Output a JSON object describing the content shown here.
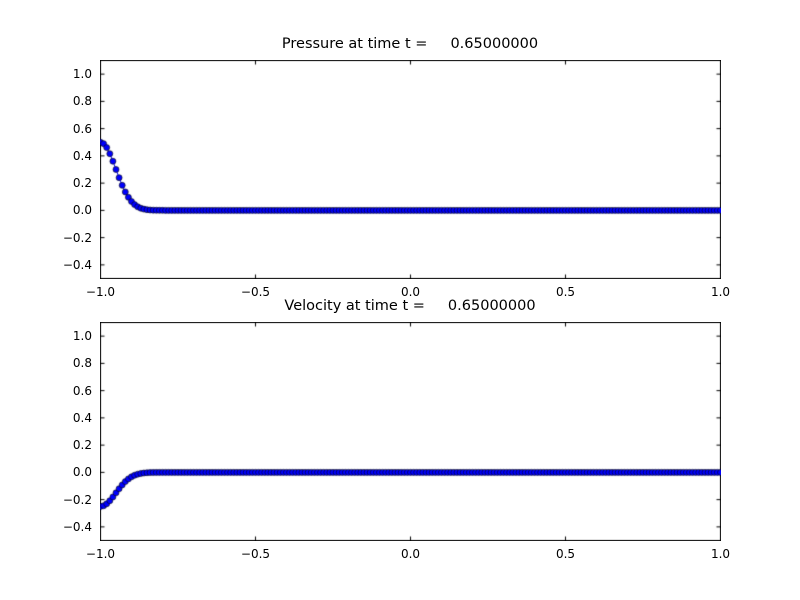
{
  "figure": {
    "background": "#ffffff"
  },
  "chart_data": [
    {
      "type": "line",
      "title": "Pressure at time t =     0.65000000",
      "xlabel": "",
      "ylabel": "",
      "xlim": [
        -1.0,
        1.0
      ],
      "ylim": [
        -0.5,
        1.1
      ],
      "xticks": [
        -1.0,
        -0.5,
        0.0,
        0.5,
        1.0
      ],
      "xtick_labels": [
        "−1.0",
        "−0.5",
        "0.0",
        "0.5",
        "1.0"
      ],
      "yticks": [
        1.0,
        0.8,
        0.6,
        0.4,
        0.2,
        0.0,
        -0.2,
        -0.4
      ],
      "ytick_labels": [
        "1.0",
        "0.8",
        "0.6",
        "0.4",
        "0.2",
        "0.0",
        "−0.2",
        "−0.4"
      ],
      "grid": false,
      "legend": null,
      "style": {
        "line_color": "#0000ff",
        "line_width": 1,
        "marker": "o",
        "marker_face": "#0000ff",
        "marker_edge": "#000000",
        "marker_size_px": 6
      },
      "series": [
        {
          "name": "pressure",
          "x_min": -1.0,
          "x_max": 1.0,
          "n_points": 201,
          "y_leading": [
            0.5,
            0.4899,
            0.4608,
            0.4161,
            0.3607,
            0.3002,
            0.2399,
            0.1839,
            0.1354,
            0.0957,
            0.065,
            0.0423,
            0.0265,
            0.0159,
            0.0092,
            0.0051,
            0.0027,
            0.0014,
            0.0007,
            0.0003,
            0.0001
          ],
          "y_remaining_value": 0.0
        }
      ]
    },
    {
      "type": "line",
      "title": "Velocity at time t =     0.65000000",
      "xlabel": "",
      "ylabel": "",
      "xlim": [
        -1.0,
        1.0
      ],
      "ylim": [
        -0.5,
        1.1
      ],
      "xticks": [
        -1.0,
        -0.5,
        0.0,
        0.5,
        1.0
      ],
      "xtick_labels": [
        "−1.0",
        "−0.5",
        "0.0",
        "0.5",
        "1.0"
      ],
      "yticks": [
        1.0,
        0.8,
        0.6,
        0.4,
        0.2,
        0.0,
        -0.2,
        -0.4
      ],
      "ytick_labels": [
        "1.0",
        "0.8",
        "0.6",
        "0.4",
        "0.2",
        "0.0",
        "−0.2",
        "−0.4"
      ],
      "grid": false,
      "legend": null,
      "style": {
        "line_color": "#0000ff",
        "line_width": 1,
        "marker": "o",
        "marker_face": "#0000ff",
        "marker_edge": "#000000",
        "marker_size_px": 6
      },
      "series": [
        {
          "name": "velocity",
          "x_min": -1.0,
          "x_max": 1.0,
          "n_points": 201,
          "y_leading": [
            -0.25,
            -0.245,
            -0.2304,
            -0.2081,
            -0.1804,
            -0.1501,
            -0.12,
            -0.092,
            -0.0677,
            -0.0478,
            -0.0325,
            -0.0211,
            -0.0132,
            -0.008,
            -0.0046,
            -0.0026,
            -0.0013,
            -0.0007,
            -0.0003,
            -0.0002,
            -0.0001
          ],
          "y_remaining_value": 0.0
        }
      ]
    }
  ]
}
